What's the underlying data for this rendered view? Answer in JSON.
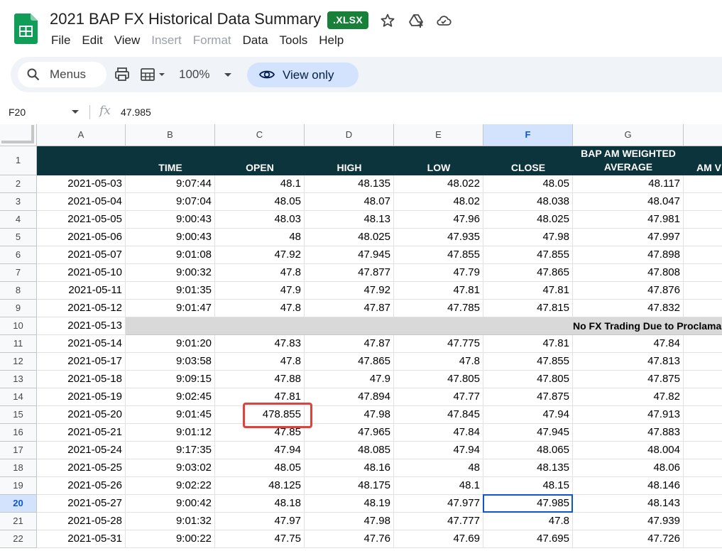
{
  "header": {
    "title": "2021 BAP FX Historical Data Summary",
    "badge": ".XLSX",
    "icons": [
      "star-icon",
      "move-to-drive-icon",
      "cloud-status-icon"
    ]
  },
  "menu": [
    "File",
    "Edit",
    "View",
    "Insert",
    "Format",
    "Data",
    "Tools",
    "Help"
  ],
  "toolbar": {
    "menus_label": "Menus",
    "zoom": "100%",
    "view_only": "View only"
  },
  "formula_bar": {
    "cell_ref": "F20",
    "fx": "fx",
    "value": "47.985"
  },
  "columns": [
    "A",
    "B",
    "C",
    "D",
    "E",
    "F",
    "G"
  ],
  "selected_column": "F",
  "selected_row": 20,
  "table": {
    "header_row": [
      "",
      "TIME",
      "OPEN",
      "HIGH",
      "LOW",
      "CLOSE",
      "BAP AM WEIGHTED",
      "AVERAGE",
      "AM V"
    ],
    "rows": [
      {
        "row": "2",
        "cells": [
          "2021-05-03",
          "9:07:44",
          "48.1",
          "48.135",
          "48.022",
          "48.05",
          "48.117"
        ]
      },
      {
        "row": "3",
        "cells": [
          "2021-05-04",
          "9:07:04",
          "48.05",
          "48.07",
          "48.02",
          "48.038",
          "48.047"
        ]
      },
      {
        "row": "4",
        "cells": [
          "2021-05-05",
          "9:00:43",
          "48.03",
          "48.13",
          "47.96",
          "48.025",
          "47.981"
        ]
      },
      {
        "row": "5",
        "cells": [
          "2021-05-06",
          "9:00:43",
          "48",
          "48.025",
          "47.935",
          "47.98",
          "47.997"
        ]
      },
      {
        "row": "6",
        "cells": [
          "2021-05-07",
          "9:01:08",
          "47.92",
          "47.945",
          "47.855",
          "47.855",
          "47.898"
        ]
      },
      {
        "row": "7",
        "cells": [
          "2021-05-10",
          "9:00:32",
          "47.8",
          "47.877",
          "47.79",
          "47.865",
          "47.808"
        ]
      },
      {
        "row": "8",
        "cells": [
          "2021-05-11",
          "9:01:35",
          "47.9",
          "47.92",
          "47.81",
          "47.81",
          "47.876"
        ]
      },
      {
        "row": "9",
        "cells": [
          "2021-05-12",
          "9:01:47",
          "47.8",
          "47.87",
          "47.785",
          "47.815",
          "47.832"
        ]
      },
      {
        "row": "10",
        "cells": [
          "2021-05-13"
        ],
        "merged_text": "No FX Trading Due to Proclama"
      },
      {
        "row": "11",
        "cells": [
          "2021-05-14",
          "9:01:20",
          "47.83",
          "47.87",
          "47.775",
          "47.81",
          "47.84"
        ]
      },
      {
        "row": "12",
        "cells": [
          "2021-05-17",
          "9:03:58",
          "47.8",
          "47.865",
          "47.8",
          "47.855",
          "47.813"
        ]
      },
      {
        "row": "13",
        "cells": [
          "2021-05-18",
          "9:09:15",
          "47.88",
          "47.9",
          "47.805",
          "47.805",
          "47.875"
        ]
      },
      {
        "row": "14",
        "cells": [
          "2021-05-19",
          "9:02:45",
          "47.81",
          "47.894",
          "47.77",
          "47.875",
          "47.82"
        ]
      },
      {
        "row": "15",
        "cells": [
          "2021-05-20",
          "9:01:45",
          "478.855",
          "47.98",
          "47.845",
          "47.94",
          "47.913"
        ]
      },
      {
        "row": "16",
        "cells": [
          "2021-05-21",
          "9:01:12",
          "47.85",
          "47.965",
          "47.84",
          "47.945",
          "47.883"
        ]
      },
      {
        "row": "17",
        "cells": [
          "2021-05-24",
          "9:17:35",
          "47.94",
          "48.085",
          "47.94",
          "48.065",
          "48.004"
        ]
      },
      {
        "row": "18",
        "cells": [
          "2021-05-25",
          "9:03:02",
          "48.05",
          "48.16",
          "48",
          "48.135",
          "48.06"
        ]
      },
      {
        "row": "19",
        "cells": [
          "2021-05-26",
          "9:02:22",
          "48.125",
          "48.175",
          "48.1",
          "48.15",
          "48.146"
        ]
      },
      {
        "row": "20",
        "cells": [
          "2021-05-27",
          "9:00:42",
          "48.18",
          "48.19",
          "47.977",
          "47.985",
          "48.143"
        ]
      },
      {
        "row": "21",
        "cells": [
          "2021-05-28",
          "9:01:32",
          "47.97",
          "47.98",
          "47.777",
          "47.8",
          "47.939"
        ]
      },
      {
        "row": "22",
        "cells": [
          "2021-05-31",
          "9:00:22",
          "47.75",
          "47.76",
          "47.69",
          "47.695",
          "47.726"
        ]
      }
    ]
  },
  "colors": {
    "header_bg": "#0c343d",
    "merged_bg": "#d9d9d9",
    "selection": "#0b57d0",
    "highlight_box": "#e0413a"
  }
}
